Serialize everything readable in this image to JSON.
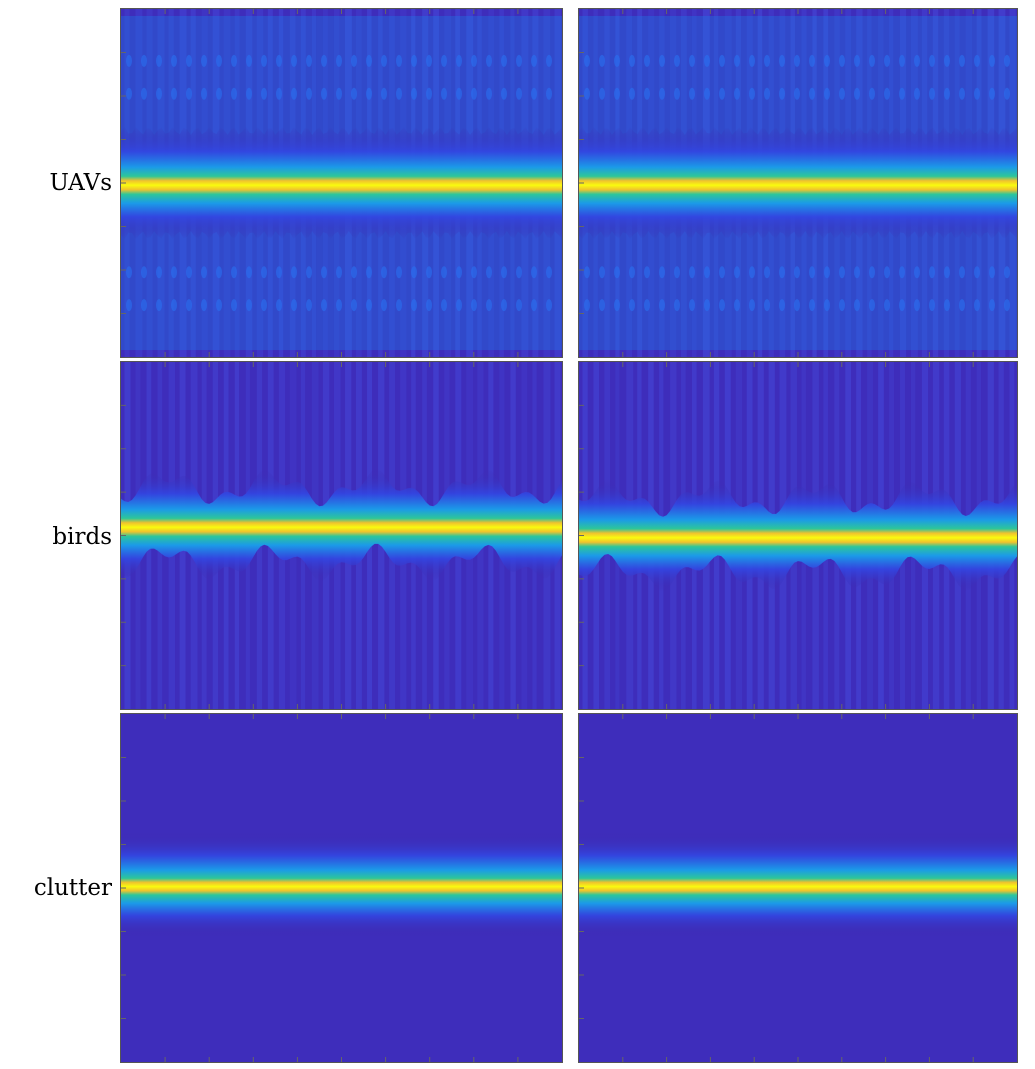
{
  "figure": {
    "rows": [
      {
        "label": "UAVs"
      },
      {
        "label": "birds"
      },
      {
        "label": "clutter"
      }
    ]
  },
  "colors": {
    "background": "#3e2dbb",
    "colormap": [
      "#3e26a8",
      "#4245e6",
      "#2d7ff9",
      "#12b4e0",
      "#1ec9a4",
      "#78cc5c",
      "#d7b93c",
      "#fbd22b",
      "#f9fb0e"
    ]
  },
  "chart_data": [
    {
      "type": "heatmap",
      "row": "UAVs",
      "column": 1,
      "pattern": "horizontal micro-Doppler line with periodic sidebands",
      "band_center": 0.5,
      "band_width": 0.05,
      "modulation": "periodic"
    },
    {
      "type": "heatmap",
      "row": "UAVs",
      "column": 2,
      "pattern": "horizontal micro-Doppler line with periodic sidebands",
      "band_center": 0.5,
      "band_width": 0.05,
      "modulation": "periodic"
    },
    {
      "type": "heatmap",
      "row": "birds",
      "column": 1,
      "pattern": "wavy wing-beat signature",
      "band_center": 0.47,
      "band_width": 0.04,
      "modulation": "irregular"
    },
    {
      "type": "heatmap",
      "row": "birds",
      "column": 2,
      "pattern": "wavy wing-beat signature",
      "band_center": 0.5,
      "band_width": 0.04,
      "modulation": "irregular"
    },
    {
      "type": "heatmap",
      "row": "clutter",
      "column": 1,
      "pattern": "constant zero-Doppler line",
      "band_center": 0.49,
      "band_width": 0.05,
      "modulation": "none"
    },
    {
      "type": "heatmap",
      "row": "clutter",
      "column": 2,
      "pattern": "constant zero-Doppler line",
      "band_center": 0.49,
      "band_width": 0.05,
      "modulation": "none"
    }
  ]
}
